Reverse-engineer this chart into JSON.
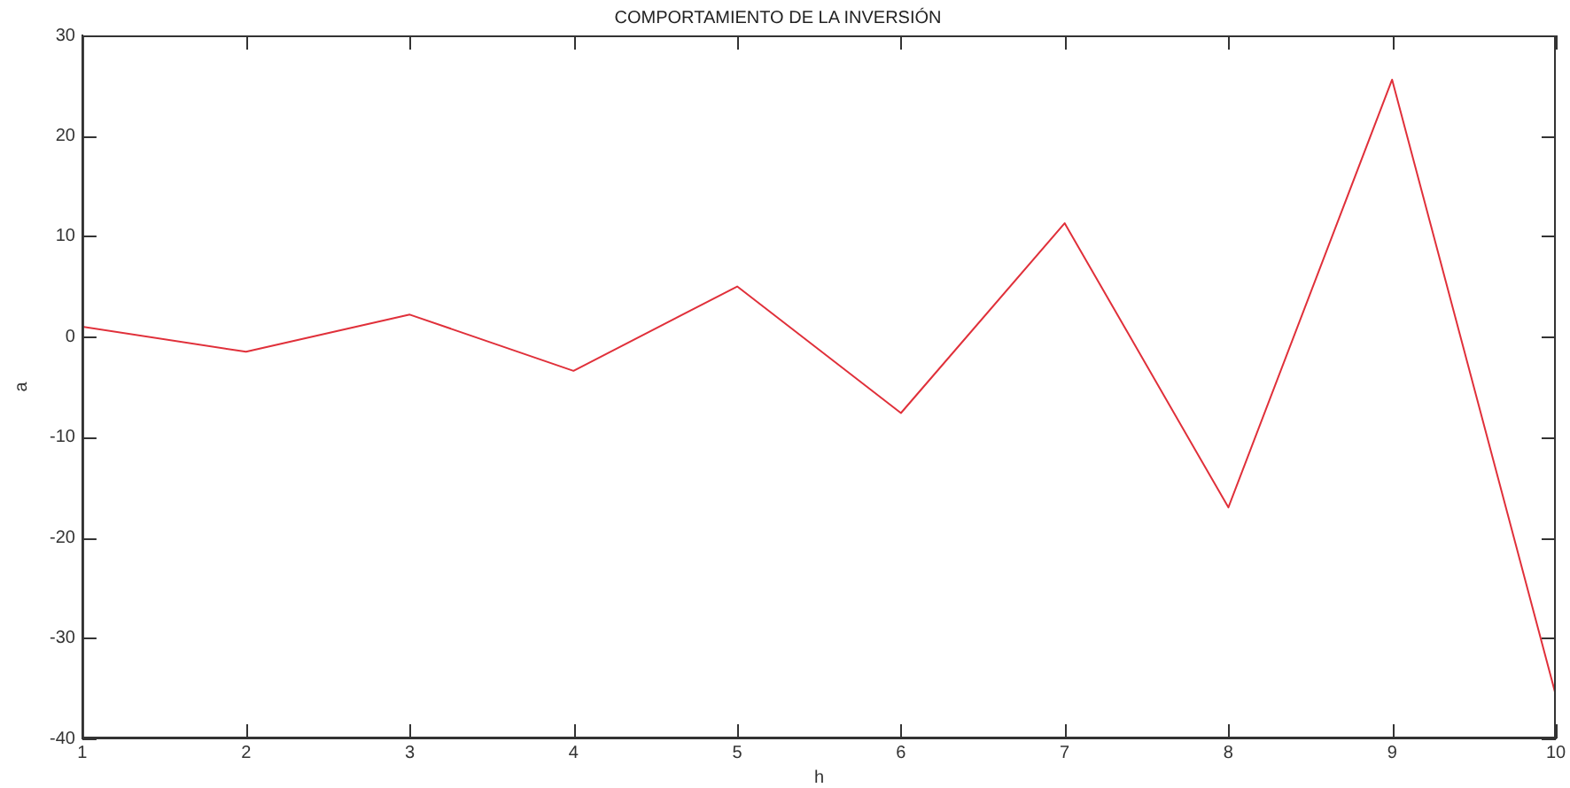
{
  "chart_data": {
    "type": "line",
    "title": "COMPORTAMIENTO DE LA INVERSIÓN",
    "xlabel": "h",
    "ylabel": "a",
    "x": [
      1,
      2,
      3,
      4,
      5,
      6,
      7,
      8,
      9,
      10
    ],
    "series": [
      {
        "color": "#e0303a",
        "values": [
          1,
          -1.5,
          2.2,
          -3.4,
          5,
          -7.6,
          11.3,
          -17,
          25.6,
          -35.7
        ]
      }
    ],
    "xlim": [
      1,
      10
    ],
    "xticks": [
      1,
      2,
      3,
      4,
      5,
      6,
      7,
      8,
      9,
      10
    ],
    "ylim": [
      -40,
      30
    ],
    "yticks": [
      -40,
      -30,
      -20,
      -10,
      0,
      10,
      20,
      30
    ],
    "grid": false,
    "legend": false,
    "marker": "none",
    "line_style": "solid"
  }
}
